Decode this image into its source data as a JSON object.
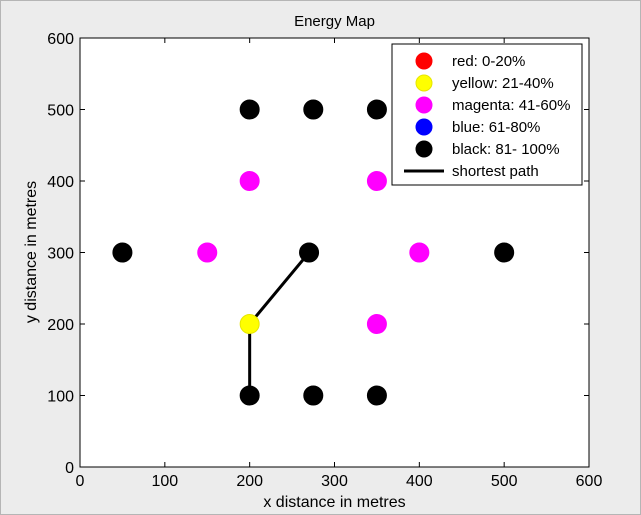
{
  "chart_data": {
    "type": "scatter",
    "title": "Energy Map",
    "xlabel": "x distance in metres",
    "ylabel": "y distance in metres",
    "xlim": [
      0,
      600
    ],
    "ylim": [
      0,
      600
    ],
    "xticks": [
      0,
      100,
      200,
      300,
      400,
      500,
      600
    ],
    "yticks": [
      0,
      100,
      200,
      300,
      400,
      500,
      600
    ],
    "grid": false,
    "legend_position": "top-right",
    "legend": [
      {
        "label": "red: 0-20%",
        "color": "#ff0000",
        "marker": "circle"
      },
      {
        "label": "yellow: 21-40%",
        "color": "#ffff00",
        "marker": "circle"
      },
      {
        "label": "magenta: 41-60%",
        "color": "#ff00ff",
        "marker": "circle"
      },
      {
        "label": "blue: 61-80%",
        "color": "#0000ff",
        "marker": "circle"
      },
      {
        "label": "black: 81- 100%",
        "color": "#000000",
        "marker": "circle"
      },
      {
        "label": "shortest path",
        "color": "#000000",
        "marker": "line"
      }
    ],
    "series": [
      {
        "color": "#000000",
        "points": [
          [
            200,
            500
          ],
          [
            275,
            500
          ],
          [
            350,
            500
          ],
          [
            50,
            300
          ],
          [
            270,
            300
          ],
          [
            500,
            300
          ],
          [
            200,
            100
          ],
          [
            275,
            100
          ],
          [
            350,
            100
          ]
        ]
      },
      {
        "color": "#ff00ff",
        "points": [
          [
            200,
            400
          ],
          [
            350,
            400
          ],
          [
            150,
            300
          ],
          [
            400,
            300
          ],
          [
            350,
            200
          ]
        ]
      },
      {
        "color": "#ffff00",
        "points": [
          [
            200,
            200
          ]
        ]
      }
    ],
    "path": {
      "color": "#000000",
      "points": [
        [
          270,
          300
        ],
        [
          200,
          200
        ],
        [
          200,
          100
        ]
      ]
    }
  }
}
